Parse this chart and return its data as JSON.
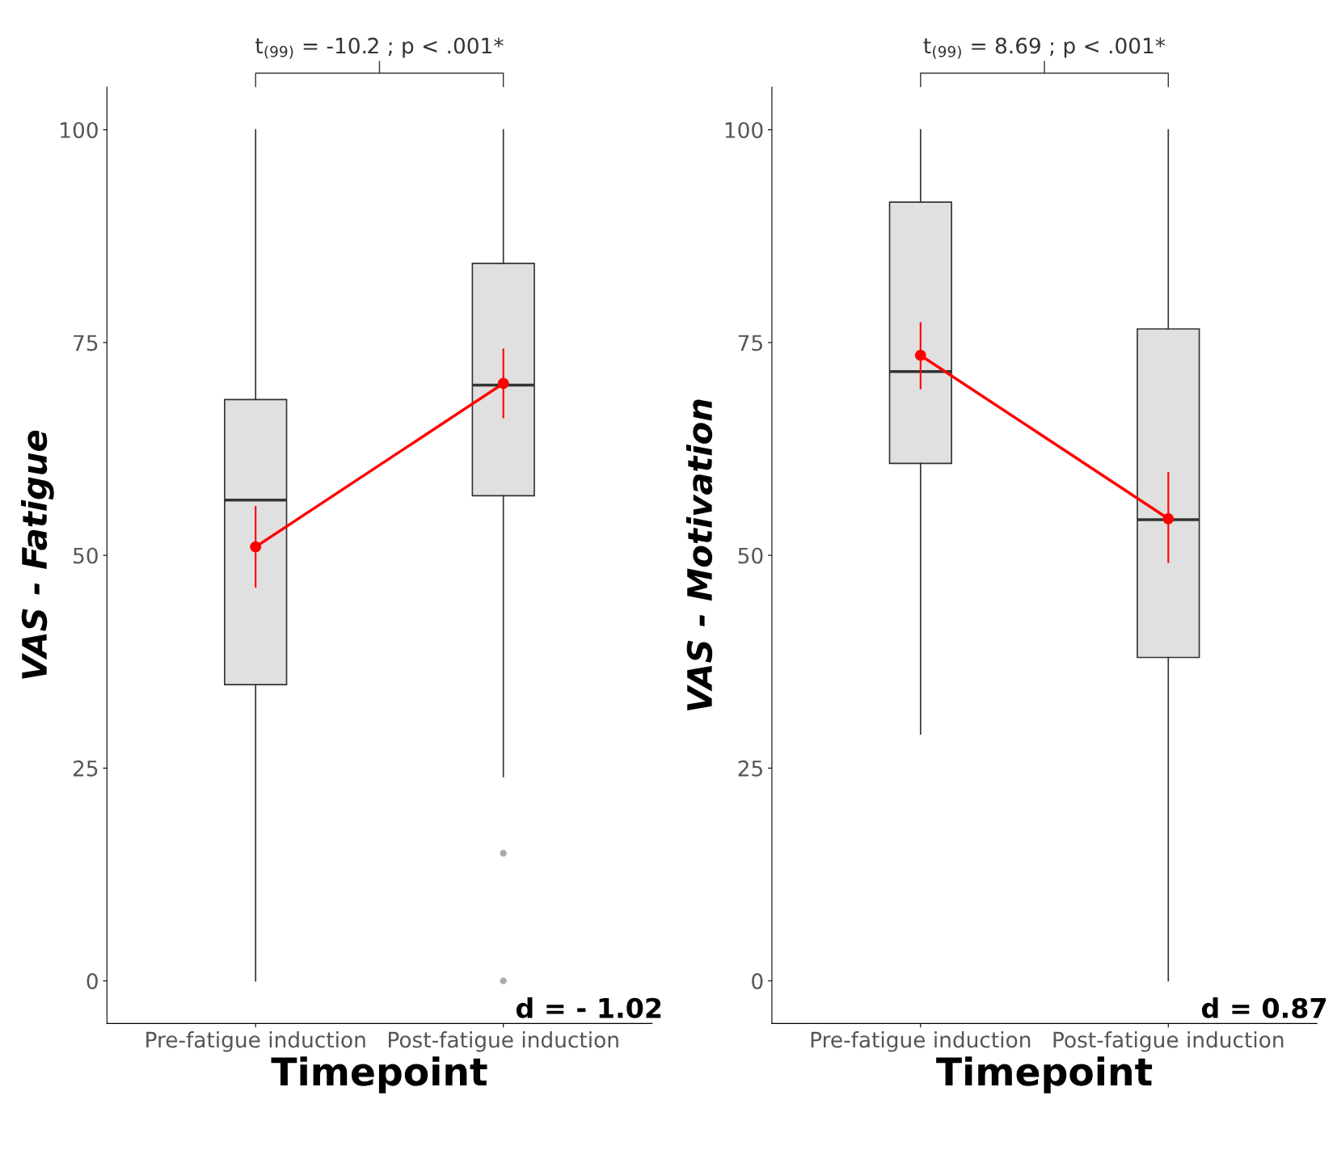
{
  "chart_data": [
    {
      "type": "box",
      "xlabel": "Timepoint",
      "ylabel": "VAS - Fatigue",
      "categories": [
        "Pre-fatigue induction",
        "Post-fatigue induction"
      ],
      "ylim": [
        -5,
        105
      ],
      "yticks": [
        0,
        25,
        50,
        75,
        100
      ],
      "grid": false,
      "legend": false,
      "boxes": [
        {
          "low": 0,
          "q1": 34.8,
          "median": 56.5,
          "q3": 68.3,
          "high": 100
        },
        {
          "low": 24,
          "q1": 57,
          "median": 70,
          "q3": 84.3,
          "high": 100,
          "outliers": [
            15,
            0
          ]
        }
      ],
      "series": [
        {
          "type": "line",
          "color": "#ff0000",
          "marker": "circle",
          "x": [
            "Pre-fatigue induction",
            "Post-fatigue induction"
          ],
          "values": [
            51,
            70.2
          ],
          "errors": [
            [
              46.3,
              55.7
            ],
            [
              66.2,
              74.2
            ]
          ]
        }
      ],
      "annotations": [
        "t$_{(99)}$ = -10.2 ; p < .001*",
        "d = - 1.02"
      ]
    },
    {
      "type": "box",
      "xlabel": "Timepoint",
      "ylabel": "VAS - Motivation",
      "categories": [
        "Pre-fatigue induction",
        "Post-fatigue induction"
      ],
      "ylim": [
        -5,
        105
      ],
      "yticks": [
        0,
        25,
        50,
        75,
        100
      ],
      "grid": false,
      "legend": false,
      "boxes": [
        {
          "low": 29,
          "q1": 60.8,
          "median": 71.6,
          "q3": 91.5,
          "high": 100
        },
        {
          "low": 0,
          "q1": 38,
          "median": 54.2,
          "q3": 76.6,
          "high": 100
        }
      ],
      "series": [
        {
          "type": "line",
          "color": "#ff0000",
          "marker": "circle",
          "x": [
            "Pre-fatigue induction",
            "Post-fatigue induction"
          ],
          "values": [
            73.5,
            54.3
          ],
          "errors": [
            [
              69.6,
              77.3
            ],
            [
              49.2,
              59.7
            ]
          ]
        }
      ],
      "annotations": [
        "t$_{(99)}$ = 8.69 ; p < .001*",
        "d = 0.87"
      ]
    }
  ]
}
